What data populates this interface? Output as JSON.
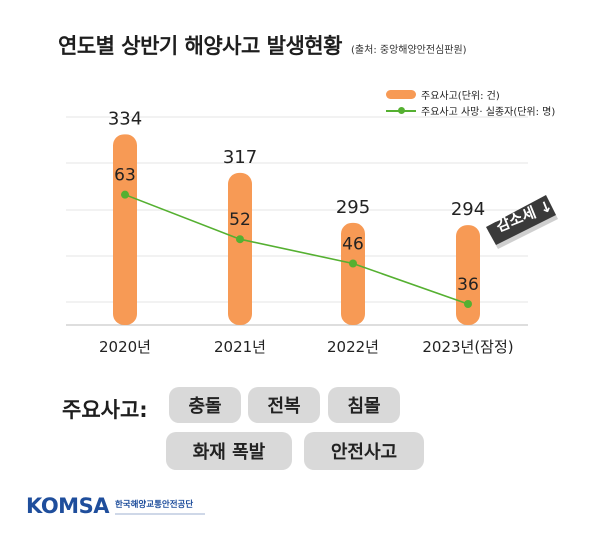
{
  "header": {
    "title": "연도별 상반기 해양사고 발생현황",
    "source": "(출처: 중앙해양안전심판원)"
  },
  "chart_data": {
    "type": "bar",
    "categories": [
      "2020년",
      "2021년",
      "2022년",
      "2023년(잠정)"
    ],
    "series": [
      {
        "name": "주요사고(단위: 건)",
        "type": "bar",
        "values": [
          334,
          317,
          295,
          294
        ],
        "color": "#f79a55"
      },
      {
        "name": "주요사고 사망· 실종자(단위: 명)",
        "type": "line",
        "values": [
          63,
          52,
          46,
          36
        ],
        "color": "#55b031"
      }
    ],
    "grid": true,
    "legend_position": "top-right",
    "annotation": "감소세 ↓"
  },
  "categories_section": {
    "label": "주요사고:",
    "items": [
      "충돌",
      "전복",
      "침몰",
      "화재 폭발",
      "안전사고"
    ]
  },
  "footer": {
    "logo_text": "KOMSA",
    "org_name": "한국해양교통안전공단"
  }
}
